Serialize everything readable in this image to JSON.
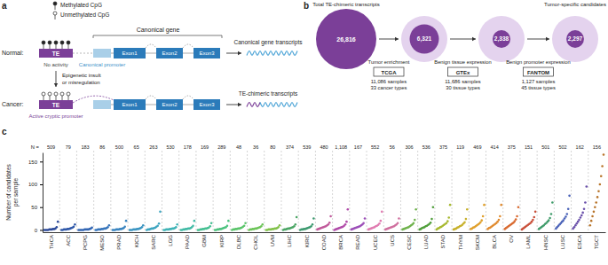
{
  "panel_a": {
    "label": "a",
    "legend": {
      "methylated": "Methylated CpG",
      "unmethylated": "Unmethylated CpG"
    },
    "gene_label": "Canonical gene",
    "normal": {
      "label": "Normal:",
      "te": "TE",
      "te_note": "No activity",
      "promoter": "Canonical promoter",
      "exons": [
        "Exon1",
        "Exon2",
        "Exon3"
      ],
      "transcript": "Canonical gene transcripts"
    },
    "transition": [
      "Epigenetic insult",
      "or misregulation"
    ],
    "cancer": {
      "label": "Cancer:",
      "te": "TE",
      "te_note": "Active cryptic promoter",
      "exons": [
        "Exon1",
        "Exon2",
        "Exon3"
      ],
      "transcript": "TE-chimeric transcripts"
    }
  },
  "panel_b": {
    "label": "b",
    "start": {
      "title": "Total TE-chimeric transcripts",
      "value": 26816,
      "value_label": "26,816"
    },
    "filters": [
      {
        "name": "Tumor enrichment",
        "source": "TCGA",
        "details": [
          "11,086 samples",
          "33 cancer types"
        ],
        "value": 6321,
        "value_label": "6,321"
      },
      {
        "name": "Benign tissue expression",
        "source": "GTEx",
        "details": [
          "11,686 samples",
          "30 tissue types"
        ],
        "value": 2338,
        "value_label": "2,338"
      },
      {
        "name": "Benign promoter expression",
        "source": "FANTOM",
        "details": [
          "1,127 samples",
          "45 tissue types"
        ],
        "value": 2297,
        "value_label": "2,297"
      }
    ],
    "result_title": "Tumor-specific candidates"
  },
  "chart_data": {
    "type": "scatter",
    "panel_label": "c",
    "y_label": [
      "Number of candidates",
      "per sample"
    ],
    "categories": [
      "THCA",
      "ACC",
      "PCPG",
      "MESO",
      "PRAD",
      "KICH",
      "SARC",
      "LGG",
      "PAAD",
      "GBM",
      "KIRP",
      "DLBC",
      "CHOL",
      "UVM",
      "LIHC",
      "KIRC",
      "COAD",
      "BRCA",
      "READ",
      "UCEC",
      "UCS",
      "CESC",
      "LUAD",
      "STAD",
      "THYM",
      "SKCM",
      "BLCA",
      "OV",
      "LAML",
      "HNSC",
      "LUSC",
      "ESCA",
      "TGCT"
    ],
    "sample_counts": {
      "label": "N =",
      "labels": [
        "509",
        "79",
        "183",
        "86",
        "500",
        "65",
        "263",
        "530",
        "178",
        "169",
        "289",
        "48",
        "36",
        "80",
        "374",
        "539",
        "480",
        "1,108",
        "167",
        "552",
        "56",
        "306",
        "536",
        "375",
        "119",
        "469",
        "414",
        "375",
        "151",
        "501",
        "502",
        "162",
        "156"
      ]
    },
    "values": [
      [
        0,
        0,
        0,
        0,
        1,
        1,
        1,
        2,
        2,
        3,
        6,
        18
      ],
      [
        0,
        0,
        1,
        1,
        1,
        2,
        2,
        3,
        4,
        5,
        7,
        12
      ],
      [
        0,
        0,
        0,
        0,
        0,
        1,
        1,
        1,
        1,
        2,
        3,
        5
      ],
      [
        0,
        0,
        1,
        1,
        1,
        2,
        2,
        3,
        3,
        4,
        6,
        10
      ],
      [
        0,
        0,
        0,
        1,
        1,
        1,
        2,
        2,
        3,
        4,
        7,
        20
      ],
      [
        0,
        0,
        0,
        1,
        1,
        1,
        2,
        2,
        3,
        4,
        6,
        10
      ],
      [
        0,
        1,
        1,
        2,
        3,
        3,
        4,
        5,
        7,
        9,
        14,
        40
      ],
      [
        0,
        0,
        1,
        1,
        1,
        2,
        2,
        3,
        3,
        4,
        6,
        12
      ],
      [
        0,
        0,
        1,
        1,
        2,
        2,
        3,
        3,
        4,
        6,
        9,
        20
      ],
      [
        0,
        0,
        1,
        1,
        2,
        2,
        3,
        3,
        4,
        5,
        8,
        15
      ],
      [
        0,
        0,
        1,
        1,
        2,
        2,
        3,
        4,
        5,
        6,
        9,
        20
      ],
      [
        0,
        1,
        1,
        2,
        2,
        3,
        3,
        4,
        5,
        7,
        9,
        15
      ],
      [
        0,
        1,
        1,
        2,
        2,
        3,
        3,
        4,
        5,
        6,
        8,
        12
      ],
      [
        0,
        0,
        1,
        1,
        1,
        2,
        2,
        3,
        3,
        4,
        6,
        10
      ],
      [
        0,
        1,
        1,
        2,
        3,
        3,
        4,
        5,
        6,
        8,
        12,
        28
      ],
      [
        0,
        1,
        1,
        2,
        2,
        3,
        4,
        5,
        6,
        8,
        12,
        25
      ],
      [
        1,
        2,
        3,
        4,
        5,
        6,
        7,
        8,
        10,
        12,
        16,
        30
      ],
      [
        0,
        1,
        2,
        3,
        4,
        5,
        6,
        7,
        9,
        12,
        18,
        45
      ],
      [
        1,
        2,
        3,
        4,
        5,
        6,
        7,
        8,
        10,
        12,
        15,
        25
      ],
      [
        1,
        2,
        3,
        4,
        5,
        6,
        8,
        9,
        11,
        14,
        20,
        40
      ],
      [
        1,
        2,
        3,
        4,
        5,
        6,
        7,
        8,
        10,
        12,
        15,
        25
      ],
      [
        1,
        2,
        3,
        4,
        5,
        6,
        8,
        10,
        12,
        15,
        22,
        45
      ],
      [
        1,
        2,
        4,
        5,
        6,
        8,
        9,
        11,
        13,
        16,
        24,
        50
      ],
      [
        1,
        3,
        4,
        6,
        7,
        9,
        11,
        13,
        15,
        19,
        27,
        55
      ],
      [
        1,
        2,
        3,
        5,
        6,
        8,
        9,
        11,
        14,
        17,
        24,
        45
      ],
      [
        2,
        3,
        5,
        6,
        8,
        10,
        12,
        14,
        17,
        21,
        30,
        55
      ],
      [
        2,
        4,
        5,
        7,
        9,
        11,
        13,
        15,
        18,
        22,
        30,
        55
      ],
      [
        2,
        4,
        6,
        8,
        10,
        12,
        14,
        16,
        19,
        23,
        30,
        50
      ],
      [
        1,
        3,
        5,
        7,
        9,
        11,
        13,
        15,
        18,
        22,
        28,
        40
      ],
      [
        2,
        4,
        6,
        8,
        10,
        13,
        15,
        18,
        21,
        26,
        35,
        60
      ],
      [
        3,
        6,
        9,
        12,
        15,
        18,
        21,
        25,
        29,
        35,
        46,
        75
      ],
      [
        3,
        6,
        10,
        14,
        18,
        22,
        27,
        32,
        38,
        46,
        60,
        95
      ],
      [
        10,
        20,
        30,
        40,
        50,
        60,
        72,
        85,
        100,
        118,
        140,
        165
      ]
    ],
    "colors": [
      "#2c4a9a",
      "#2f58a8",
      "#3366b3",
      "#3775bb",
      "#3a85c0",
      "#3c95c2",
      "#3ea5c0",
      "#3fb3b6",
      "#41baa5",
      "#45bf92",
      "#4cc27e",
      "#5ac46a",
      "#6cc458",
      "#82c24a",
      "#4aa564",
      "#3e9a70",
      "#c0599a",
      "#b04aa8",
      "#9c4fb8",
      "#e07bb0",
      "#cf6f9e",
      "#6fb24d",
      "#4f9e3a",
      "#a7b82f",
      "#c7b02a",
      "#e0a02c",
      "#e08a2e",
      "#d96a30",
      "#c9503a",
      "#3f9b6a",
      "#4a62b8",
      "#6a50aa",
      "#b8742a"
    ],
    "ylim": [
      -5,
      170
    ],
    "yticks": [
      0,
      50,
      100,
      150
    ],
    "grid": false,
    "marker": "circle"
  }
}
